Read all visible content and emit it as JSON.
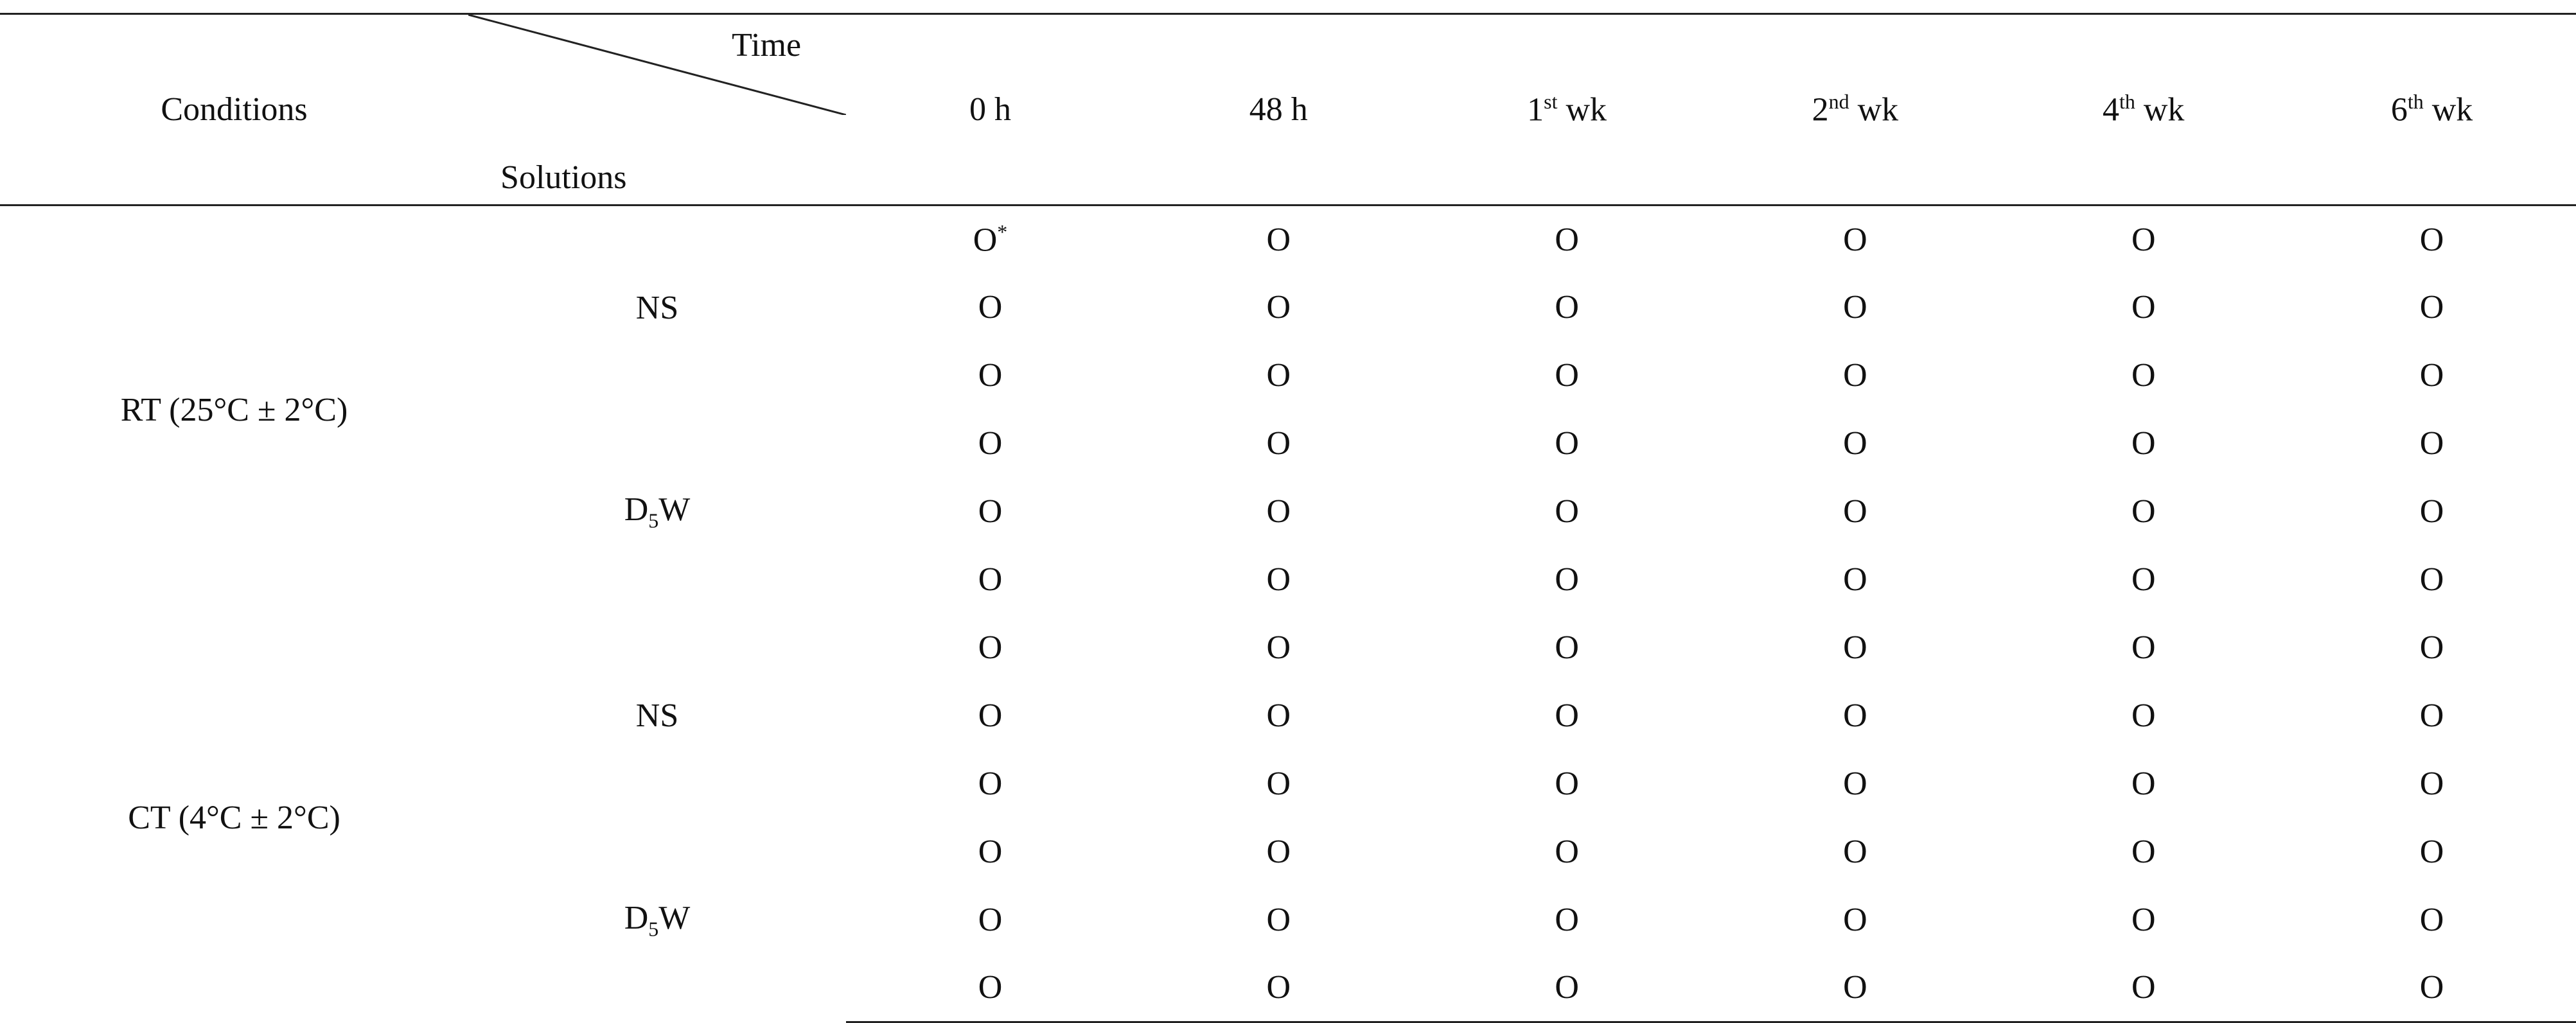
{
  "header": {
    "conditions": "Conditions",
    "time": "Time",
    "solutions": "Solutions",
    "columns": [
      {
        "base": "0 h"
      },
      {
        "base": "48 h"
      },
      {
        "base": "1",
        "sup": "st",
        "rest": " wk"
      },
      {
        "base": "2",
        "sup": "nd",
        "rest": " wk"
      },
      {
        "base": "4",
        "sup": "th",
        "rest": " wk"
      },
      {
        "base": "6",
        "sup": "th",
        "rest": " wk"
      }
    ]
  },
  "groups": [
    {
      "condition": "RT (25°C ± 2°C)",
      "solutions": [
        {
          "base": "NS"
        },
        {
          "base": "D",
          "sub": "5",
          "rest": "W"
        }
      ]
    },
    {
      "condition": "CT (4°C ± 2°C)",
      "solutions": [
        {
          "base": "NS"
        },
        {
          "base": "D",
          "sub": "5",
          "rest": "W"
        }
      ]
    }
  ],
  "rows": [
    [
      {
        "base": "O",
        "sup": "*"
      },
      {
        "base": "O"
      },
      {
        "base": "O"
      },
      {
        "base": "O"
      },
      {
        "base": "O"
      },
      {
        "base": "O"
      }
    ],
    [
      {
        "base": "O"
      },
      {
        "base": "O"
      },
      {
        "base": "O"
      },
      {
        "base": "O"
      },
      {
        "base": "O"
      },
      {
        "base": "O"
      }
    ],
    [
      {
        "base": "O"
      },
      {
        "base": "O"
      },
      {
        "base": "O"
      },
      {
        "base": "O"
      },
      {
        "base": "O"
      },
      {
        "base": "O"
      }
    ],
    [
      {
        "base": "O"
      },
      {
        "base": "O"
      },
      {
        "base": "O"
      },
      {
        "base": "O"
      },
      {
        "base": "O"
      },
      {
        "base": "O"
      }
    ],
    [
      {
        "base": "O"
      },
      {
        "base": "O"
      },
      {
        "base": "O"
      },
      {
        "base": "O"
      },
      {
        "base": "O"
      },
      {
        "base": "O"
      }
    ],
    [
      {
        "base": "O"
      },
      {
        "base": "O"
      },
      {
        "base": "O"
      },
      {
        "base": "O"
      },
      {
        "base": "O"
      },
      {
        "base": "O"
      }
    ],
    [
      {
        "base": "O"
      },
      {
        "base": "O"
      },
      {
        "base": "O"
      },
      {
        "base": "O"
      },
      {
        "base": "O"
      },
      {
        "base": "O"
      }
    ],
    [
      {
        "base": "O"
      },
      {
        "base": "O"
      },
      {
        "base": "O"
      },
      {
        "base": "O"
      },
      {
        "base": "O"
      },
      {
        "base": "O"
      }
    ],
    [
      {
        "base": "O"
      },
      {
        "base": "O"
      },
      {
        "base": "O"
      },
      {
        "base": "O"
      },
      {
        "base": "O"
      },
      {
        "base": "O"
      }
    ],
    [
      {
        "base": "O"
      },
      {
        "base": "O"
      },
      {
        "base": "O"
      },
      {
        "base": "O"
      },
      {
        "base": "O"
      },
      {
        "base": "O"
      }
    ],
    [
      {
        "base": "O"
      },
      {
        "base": "O"
      },
      {
        "base": "O"
      },
      {
        "base": "O"
      },
      {
        "base": "O"
      },
      {
        "base": "O"
      }
    ],
    [
      {
        "base": "O"
      },
      {
        "base": "O"
      },
      {
        "base": "O"
      },
      {
        "base": "O"
      },
      {
        "base": "O"
      },
      {
        "base": "O"
      }
    ]
  ]
}
